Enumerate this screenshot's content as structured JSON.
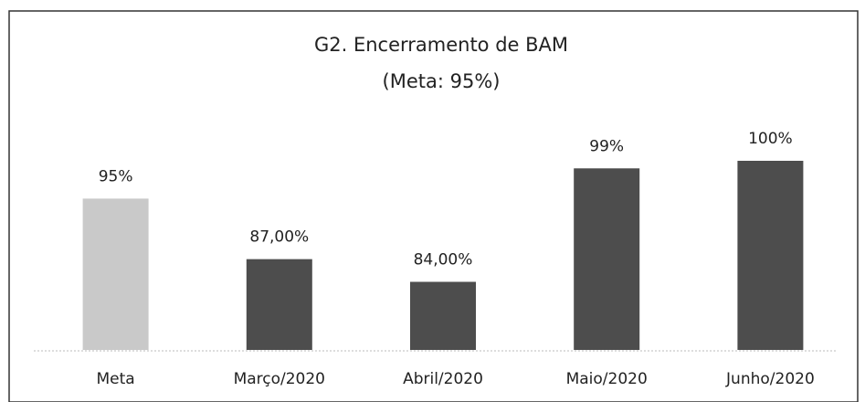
{
  "chart_data": {
    "type": "bar",
    "title": "G2. Encerramento de BAM",
    "subtitle": "(Meta: 95%)",
    "categories": [
      "Meta",
      "Março/2020",
      "Abril/2020",
      "Maio/2020",
      "Junho/2020"
    ],
    "values": [
      95,
      87,
      84,
      99,
      100
    ],
    "value_labels": [
      "95%",
      "87,00%",
      "84,00%",
      "99%",
      "100%"
    ],
    "colors": [
      "#c9c9c9",
      "#4d4d4d",
      "#4d4d4d",
      "#4d4d4d",
      "#4d4d4d"
    ],
    "ylim": [
      75,
      100
    ]
  }
}
